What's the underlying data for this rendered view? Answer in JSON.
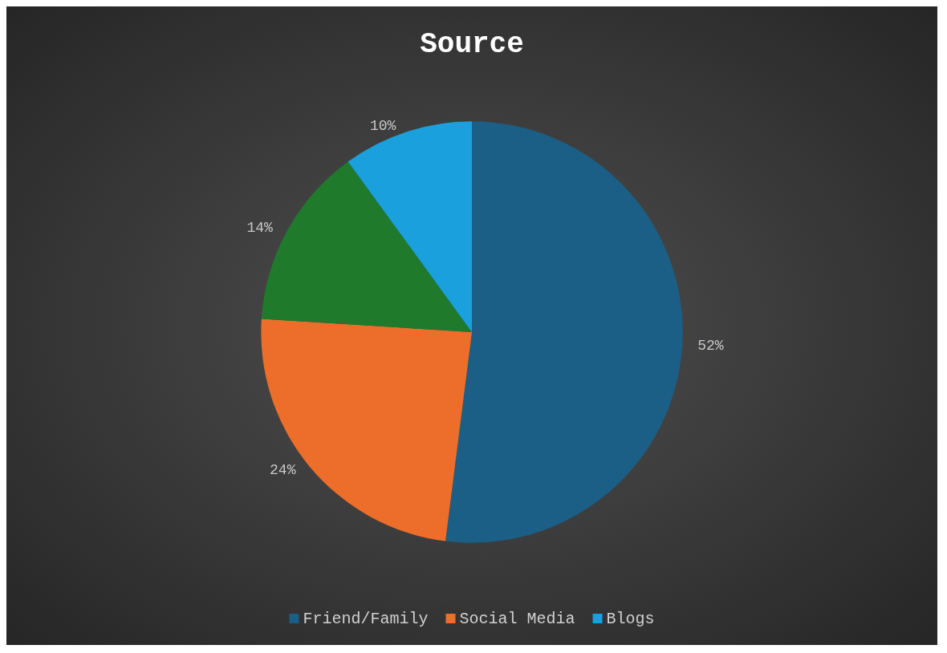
{
  "chart_data": {
    "type": "pie",
    "title": "Source",
    "categories": [
      "Friend/Family",
      "Social Media",
      null,
      "Blogs"
    ],
    "values": [
      52,
      24,
      14,
      10
    ],
    "colors": [
      "#1b5f86",
      "#ec6e2a",
      "#1f7a2c",
      "#1aa0dc"
    ],
    "value_labels": [
      "52%",
      "24%",
      "14%",
      "10%"
    ],
    "legend": "bottom"
  }
}
